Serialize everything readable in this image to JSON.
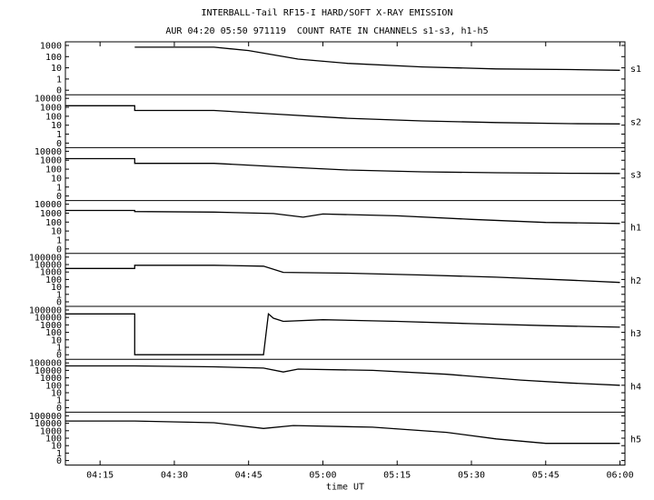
{
  "header": {
    "title": "INTERBALL-Tail RF15-I HARD/SOFT X-RAY EMISSION",
    "subtitle": "AUR 04:20 05:50 971119  COUNT RATE IN CHANNELS s1-s3, h1-h5"
  },
  "chart_data": {
    "type": "line",
    "xlabel": "time UT",
    "x_range": [
      "04:08",
      "06:01"
    ],
    "x_ticks": [
      "04:15",
      "04:30",
      "04:45",
      "05:00",
      "05:15",
      "05:30",
      "05:45",
      "06:00"
    ],
    "y_scale": "log",
    "grid": false,
    "panels": [
      {
        "label": "s1",
        "y_ticks": [
          "1000",
          "100",
          "10",
          "1",
          "0"
        ],
        "points": [
          [
            "04:22",
            700
          ],
          [
            "04:38",
            700
          ],
          [
            "04:45",
            350
          ],
          [
            "04:55",
            60
          ],
          [
            "05:05",
            25
          ],
          [
            "05:20",
            12
          ],
          [
            "05:35",
            8
          ],
          [
            "05:50",
            7
          ],
          [
            "06:00",
            6
          ]
        ]
      },
      {
        "label": "s2",
        "y_ticks": [
          "10000",
          "1000",
          "100",
          "10",
          "1",
          "0"
        ],
        "points": [
          [
            "04:08",
            1500
          ],
          [
            "04:22",
            1500
          ],
          [
            "04:22",
            450
          ],
          [
            "04:38",
            450
          ],
          [
            "04:50",
            180
          ],
          [
            "05:05",
            60
          ],
          [
            "05:20",
            30
          ],
          [
            "05:35",
            20
          ],
          [
            "05:50",
            15
          ],
          [
            "06:00",
            14
          ]
        ]
      },
      {
        "label": "s3",
        "y_ticks": [
          "10000",
          "1000",
          "100",
          "10",
          "1",
          "0"
        ],
        "points": [
          [
            "04:08",
            1500
          ],
          [
            "04:22",
            1500
          ],
          [
            "04:22",
            450
          ],
          [
            "04:38",
            450
          ],
          [
            "04:50",
            200
          ],
          [
            "05:05",
            80
          ],
          [
            "05:20",
            50
          ],
          [
            "05:35",
            40
          ],
          [
            "05:50",
            35
          ],
          [
            "06:00",
            33
          ]
        ]
      },
      {
        "label": "h1",
        "y_ticks": [
          "10000",
          "1000",
          "100",
          "10",
          "1",
          "0"
        ],
        "points": [
          [
            "04:08",
            2000
          ],
          [
            "04:22",
            2000
          ],
          [
            "04:22",
            1500
          ],
          [
            "04:38",
            1300
          ],
          [
            "04:50",
            900
          ],
          [
            "04:56",
            350
          ],
          [
            "05:00",
            800
          ],
          [
            "05:15",
            500
          ],
          [
            "05:30",
            200
          ],
          [
            "05:45",
            90
          ],
          [
            "06:00",
            70
          ]
        ]
      },
      {
        "label": "h2",
        "y_ticks": [
          "100000",
          "10000",
          "1000",
          "100",
          "10",
          "1",
          "0"
        ],
        "points": [
          [
            "04:08",
            3000
          ],
          [
            "04:22",
            3000
          ],
          [
            "04:22",
            8000
          ],
          [
            "04:38",
            8000
          ],
          [
            "04:48",
            6000
          ],
          [
            "04:52",
            900
          ],
          [
            "05:05",
            700
          ],
          [
            "05:20",
            400
          ],
          [
            "05:35",
            200
          ],
          [
            "05:50",
            80
          ],
          [
            "06:00",
            40
          ]
        ]
      },
      {
        "label": "h3",
        "y_ticks": [
          "100000",
          "10000",
          "1000",
          "100",
          "10",
          "1",
          "0"
        ],
        "points": [
          [
            "04:08",
            30000
          ],
          [
            "04:22",
            30000
          ],
          [
            "04:22",
            0
          ],
          [
            "04:48",
            0
          ],
          [
            "04:49",
            30000
          ],
          [
            "04:50",
            8000
          ],
          [
            "04:52",
            3000
          ],
          [
            "05:00",
            5000
          ],
          [
            "05:15",
            3000
          ],
          [
            "05:30",
            1500
          ],
          [
            "05:45",
            800
          ],
          [
            "06:00",
            500
          ]
        ]
      },
      {
        "label": "h4",
        "y_ticks": [
          "100000",
          "10000",
          "1000",
          "100",
          "10",
          "1",
          "0"
        ],
        "points": [
          [
            "04:08",
            40000
          ],
          [
            "04:22",
            40000
          ],
          [
            "04:38",
            30000
          ],
          [
            "04:48",
            20000
          ],
          [
            "04:52",
            6000
          ],
          [
            "04:55",
            15000
          ],
          [
            "05:10",
            10000
          ],
          [
            "05:25",
            3000
          ],
          [
            "05:40",
            500
          ],
          [
            "05:50",
            200
          ],
          [
            "06:00",
            100
          ]
        ]
      },
      {
        "label": "h5",
        "y_ticks": [
          "100000",
          "10000",
          "1000",
          "100",
          "10",
          "1",
          "0"
        ],
        "points": [
          [
            "04:08",
            20000
          ],
          [
            "04:22",
            20000
          ],
          [
            "04:38",
            12000
          ],
          [
            "04:48",
            2000
          ],
          [
            "04:54",
            5000
          ],
          [
            "05:10",
            3000
          ],
          [
            "05:25",
            600
          ],
          [
            "05:35",
            80
          ],
          [
            "05:45",
            20
          ],
          [
            "06:00",
            20
          ]
        ]
      }
    ]
  }
}
